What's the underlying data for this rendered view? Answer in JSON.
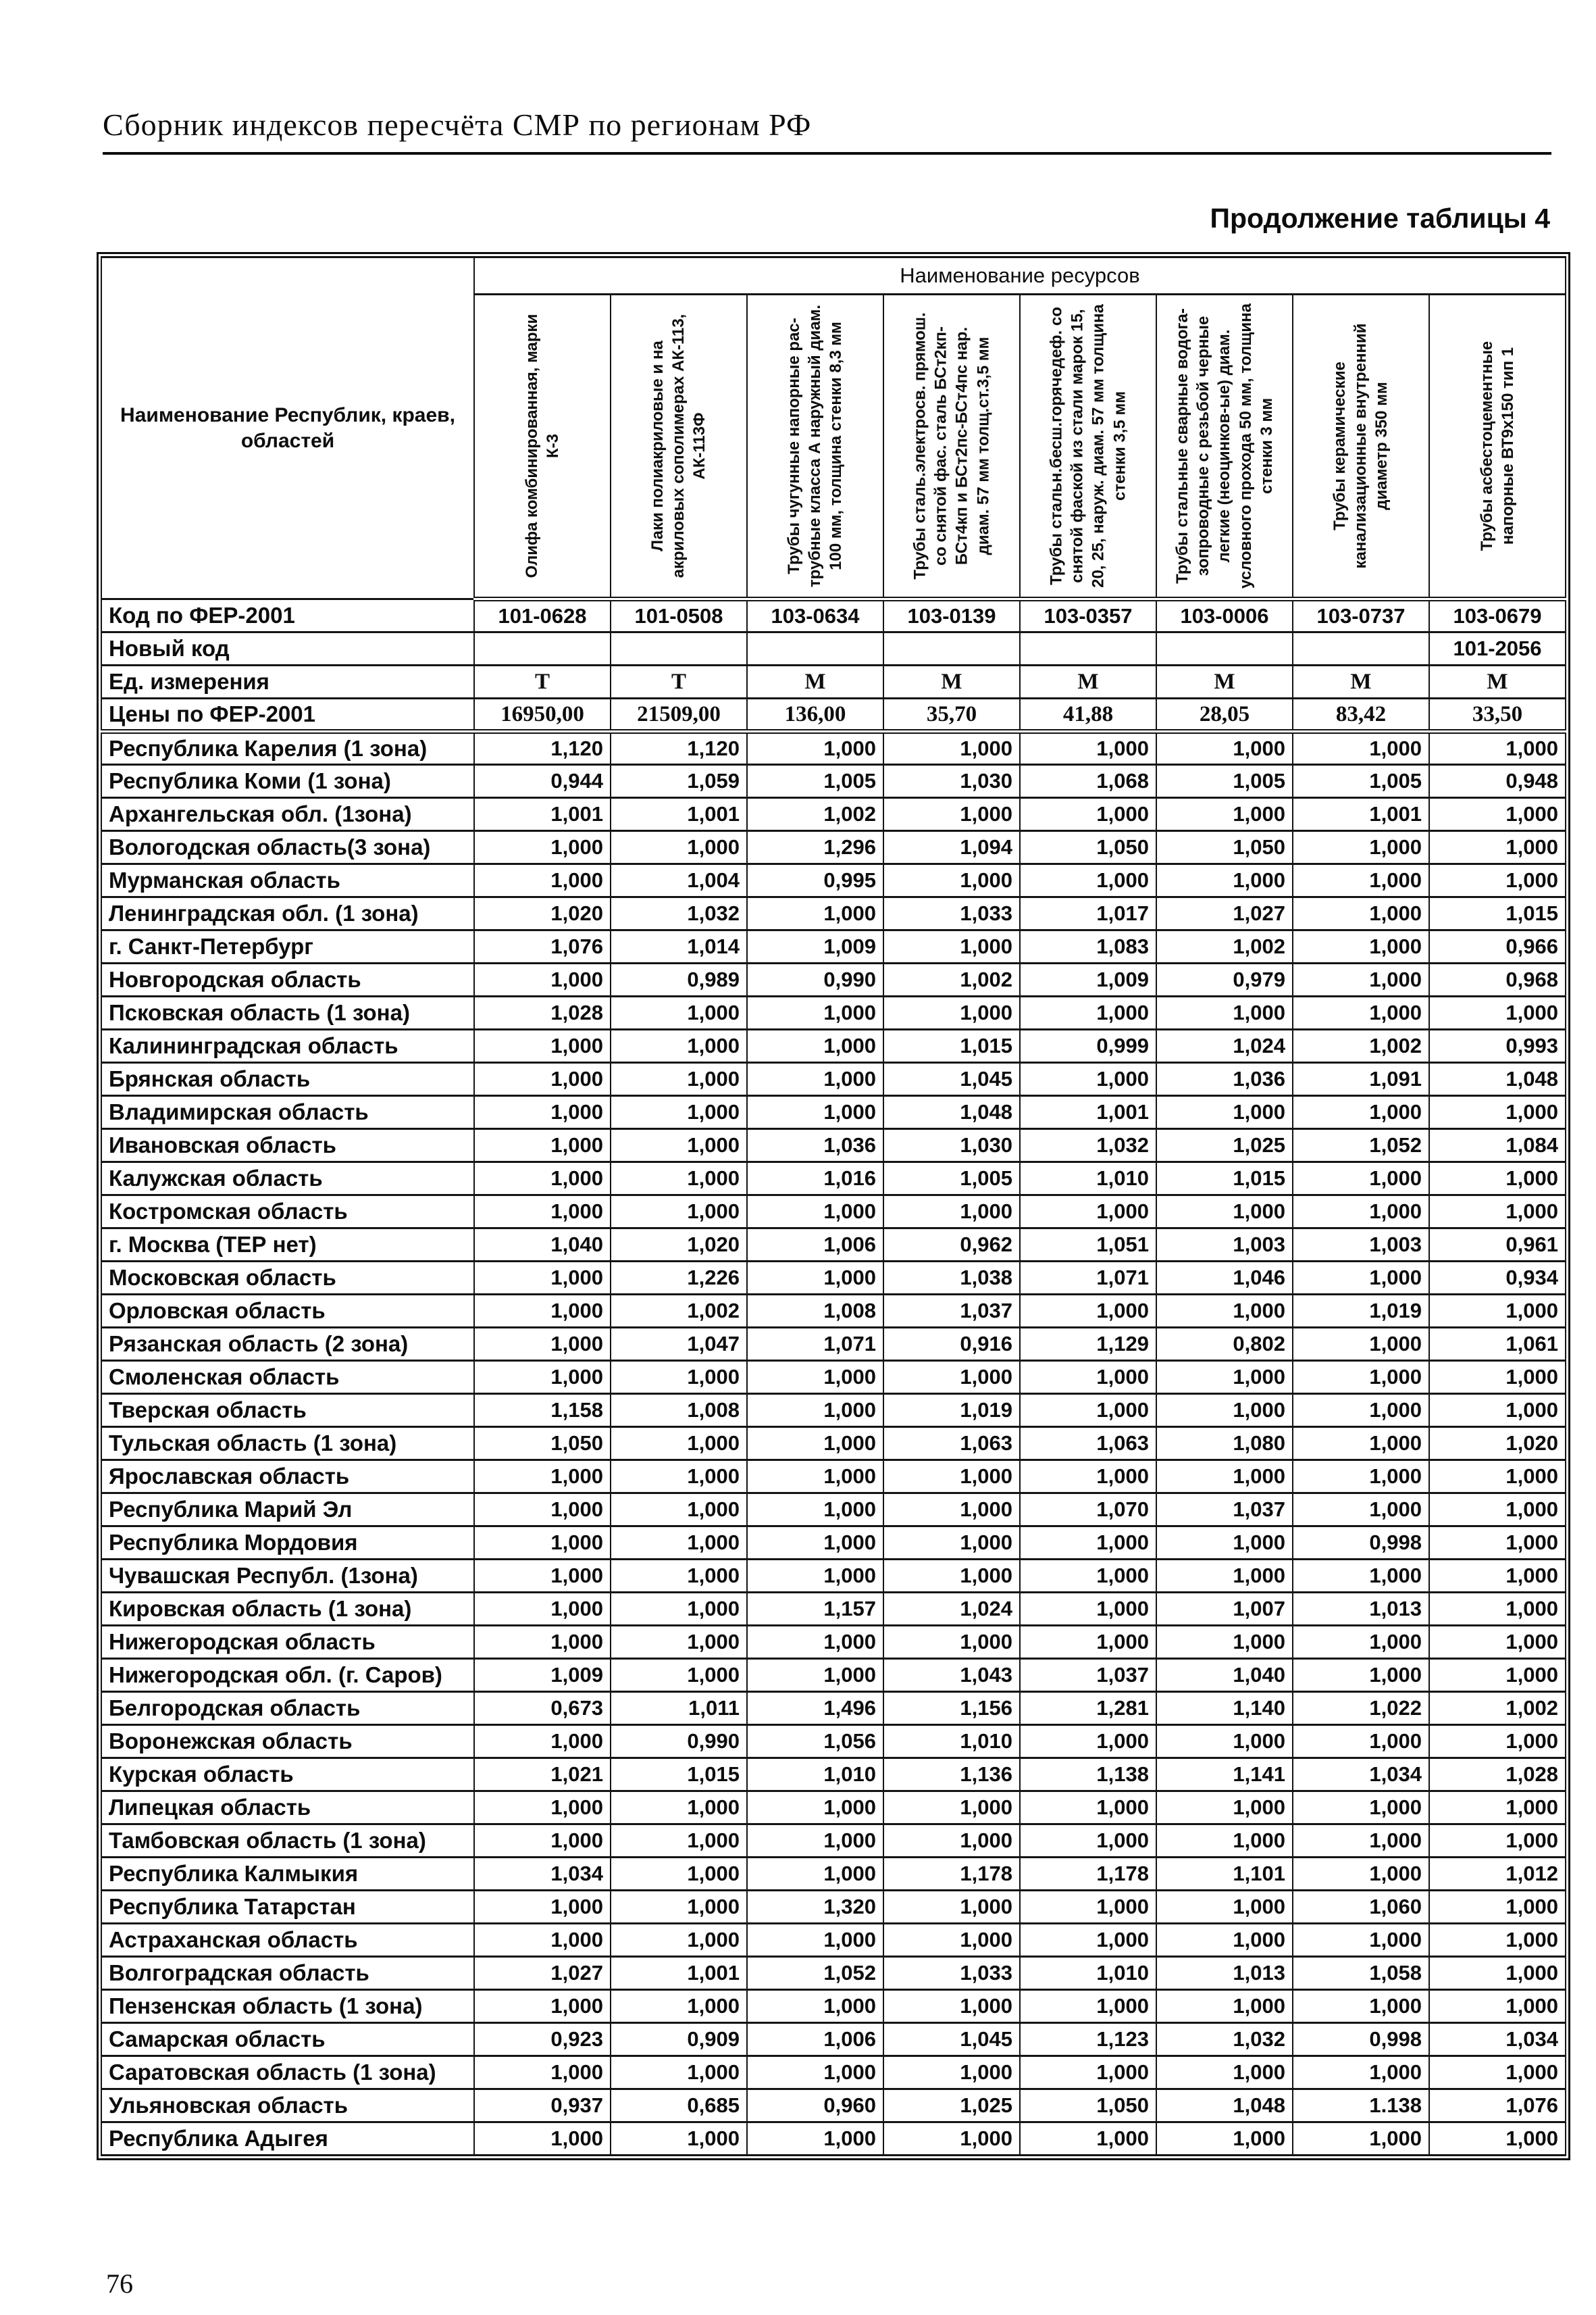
{
  "page": {
    "header_title": "Сборник индексов пересчёта СМР  по регионам РФ",
    "table_caption": "Продолжение таблицы 4",
    "page_number": "76"
  },
  "table": {
    "region_header": "Наименование Республик, краев, областей",
    "resources_header": "Наименование ресурсов",
    "columns": [
      "Олифа комбинированная, марки К-3",
      "Лаки полиакриловые и на акриловых сополимерах АК-113, АК-113Ф",
      "Трубы чугунные напорные рас- трубные класса А наружный диам. 100 мм, толщина стенки 8,3 мм",
      "Трубы сталь.электросв. прямош. со снятой фас. сталь БСт2кп- БСт4кп и БСт2пс-БСт4пс нар. диам. 57 мм  толщ.ст.3,5 мм",
      "Трубы стальн.бесш.горячедеф. со снятой фаской  из стали марок 15, 20, 25, наруж. диам. 57 мм толщина стенки 3,5 мм",
      "Трубы стальные сварные водога- зопроводные с резьбой черные легкие (неоцинков-ые) диам. условного прохода 50 мм, толщина стенки 3 мм",
      "Трубы керамические канализационные внутренний диаметр  350 мм",
      "Трубы асбестоцементные напорные ВТ9х150 тип 1"
    ],
    "meta_rows": [
      {
        "label": "Код по ФЕР-2001",
        "style": "sans",
        "values": [
          "101-0628",
          "101-0508",
          "103-0634",
          "103-0139",
          "103-0357",
          "103-0006",
          "103-0737",
          "103-0679"
        ]
      },
      {
        "label": "Новый код",
        "style": "sans",
        "values": [
          "",
          "",
          "",
          "",
          "",
          "",
          "",
          "101-2056"
        ]
      },
      {
        "label": "Ед. измерения",
        "style": "serif",
        "values": [
          "Т",
          "Т",
          "М",
          "М",
          "М",
          "М",
          "М",
          "М"
        ]
      },
      {
        "label": "Цены по ФЕР-2001",
        "style": "serif",
        "values": [
          "16950,00",
          "21509,00",
          "136,00",
          "35,70",
          "41,88",
          "28,05",
          "83,42",
          "33,50"
        ]
      }
    ],
    "rows": [
      {
        "region": "Республика Карелия (1 зона)",
        "values": [
          "1,120",
          "1,120",
          "1,000",
          "1,000",
          "1,000",
          "1,000",
          "1,000",
          "1,000"
        ]
      },
      {
        "region": "Республика Коми (1 зона)",
        "values": [
          "0,944",
          "1,059",
          "1,005",
          "1,030",
          "1,068",
          "1,005",
          "1,005",
          "0,948"
        ]
      },
      {
        "region": "Архангельская обл. (1зона)",
        "values": [
          "1,001",
          "1,001",
          "1,002",
          "1,000",
          "1,000",
          "1,000",
          "1,001",
          "1,000"
        ]
      },
      {
        "region": "Вологодская область(3 зона)",
        "values": [
          "1,000",
          "1,000",
          "1,296",
          "1,094",
          "1,050",
          "1,050",
          "1,000",
          "1,000"
        ]
      },
      {
        "region": "Мурманская область",
        "values": [
          "1,000",
          "1,004",
          "0,995",
          "1,000",
          "1,000",
          "1,000",
          "1,000",
          "1,000"
        ]
      },
      {
        "region": "Ленинградская обл. (1 зона)",
        "values": [
          "1,020",
          "1,032",
          "1,000",
          "1,033",
          "1,017",
          "1,027",
          "1,000",
          "1,015"
        ]
      },
      {
        "region": "г. Санкт-Петербург",
        "values": [
          "1,076",
          "1,014",
          "1,009",
          "1,000",
          "1,083",
          "1,002",
          "1,000",
          "0,966"
        ]
      },
      {
        "region": "Новгородская область",
        "values": [
          "1,000",
          "0,989",
          "0,990",
          "1,002",
          "1,009",
          "0,979",
          "1,000",
          "0,968"
        ]
      },
      {
        "region": "Псковская область (1 зона)",
        "values": [
          "1,028",
          "1,000",
          "1,000",
          "1,000",
          "1,000",
          "1,000",
          "1,000",
          "1,000"
        ]
      },
      {
        "region": "Калининградская область",
        "values": [
          "1,000",
          "1,000",
          "1,000",
          "1,015",
          "0,999",
          "1,024",
          "1,002",
          "0,993"
        ]
      },
      {
        "region": "Брянская область",
        "values": [
          "1,000",
          "1,000",
          "1,000",
          "1,045",
          "1,000",
          "1,036",
          "1,091",
          "1,048"
        ]
      },
      {
        "region": "Владимирская область",
        "values": [
          "1,000",
          "1,000",
          "1,000",
          "1,048",
          "1,001",
          "1,000",
          "1,000",
          "1,000"
        ]
      },
      {
        "region": "Ивановская область",
        "values": [
          "1,000",
          "1,000",
          "1,036",
          "1,030",
          "1,032",
          "1,025",
          "1,052",
          "1,084"
        ]
      },
      {
        "region": "Калужская область",
        "values": [
          "1,000",
          "1,000",
          "1,016",
          "1,005",
          "1,010",
          "1,015",
          "1,000",
          "1,000"
        ]
      },
      {
        "region": "Костромская область",
        "values": [
          "1,000",
          "1,000",
          "1,000",
          "1,000",
          "1,000",
          "1,000",
          "1,000",
          "1,000"
        ]
      },
      {
        "region": "г. Москва (ТЕР нет)",
        "values": [
          "1,040",
          "1,020",
          "1,006",
          "0,962",
          "1,051",
          "1,003",
          "1,003",
          "0,961"
        ]
      },
      {
        "region": "Московская  область",
        "values": [
          "1,000",
          "1,226",
          "1,000",
          "1,038",
          "1,071",
          "1,046",
          "1,000",
          "0,934"
        ]
      },
      {
        "region": "Орловская область",
        "values": [
          "1,000",
          "1,002",
          "1,008",
          "1,037",
          "1,000",
          "1,000",
          "1,019",
          "1,000"
        ]
      },
      {
        "region": "Рязанская область (2 зона)",
        "values": [
          "1,000",
          "1,047",
          "1,071",
          "0,916",
          "1,129",
          "0,802",
          "1,000",
          "1,061"
        ]
      },
      {
        "region": "Смоленская область",
        "values": [
          "1,000",
          "1,000",
          "1,000",
          "1,000",
          "1,000",
          "1,000",
          "1,000",
          "1,000"
        ]
      },
      {
        "region": "Тверская область",
        "values": [
          "1,158",
          "1,008",
          "1,000",
          "1,019",
          "1,000",
          "1,000",
          "1,000",
          "1,000"
        ]
      },
      {
        "region": "Тульская область (1 зона)",
        "values": [
          "1,050",
          "1,000",
          "1,000",
          "1,063",
          "1,063",
          "1,080",
          "1,000",
          "1,020"
        ]
      },
      {
        "region": "Ярославская область",
        "values": [
          "1,000",
          "1,000",
          "1,000",
          "1,000",
          "1,000",
          "1,000",
          "1,000",
          "1,000"
        ]
      },
      {
        "region": "Республика Марий Эл",
        "values": [
          "1,000",
          "1,000",
          "1,000",
          "1,000",
          "1,070",
          "1,037",
          "1,000",
          "1,000"
        ]
      },
      {
        "region": "Республика Мордовия",
        "values": [
          "1,000",
          "1,000",
          "1,000",
          "1,000",
          "1,000",
          "1,000",
          "0,998",
          "1,000"
        ]
      },
      {
        "region": "Чувашская Республ. (1зона)",
        "values": [
          "1,000",
          "1,000",
          "1,000",
          "1,000",
          "1,000",
          "1,000",
          "1,000",
          "1,000"
        ]
      },
      {
        "region": "Кировская область (1 зона)",
        "values": [
          "1,000",
          "1,000",
          "1,157",
          "1,024",
          "1,000",
          "1,007",
          "1,013",
          "1,000"
        ]
      },
      {
        "region": "Нижегородская область",
        "values": [
          "1,000",
          "1,000",
          "1,000",
          "1,000",
          "1,000",
          "1,000",
          "1,000",
          "1,000"
        ]
      },
      {
        "region": "Нижегородская обл. (г. Саров)",
        "values": [
          "1,009",
          "1,000",
          "1,000",
          "1,043",
          "1,037",
          "1,040",
          "1,000",
          "1,000"
        ]
      },
      {
        "region": "Белгородская область",
        "values": [
          "0,673",
          "1,011",
          "1,496",
          "1,156",
          "1,281",
          "1,140",
          "1,022",
          "1,002"
        ]
      },
      {
        "region": "Воронежская область",
        "values": [
          "1,000",
          "0,990",
          "1,056",
          "1,010",
          "1,000",
          "1,000",
          "1,000",
          "1,000"
        ]
      },
      {
        "region": "Курская область",
        "values": [
          "1,021",
          "1,015",
          "1,010",
          "1,136",
          "1,138",
          "1,141",
          "1,034",
          "1,028"
        ]
      },
      {
        "region": "Липецкая область",
        "values": [
          "1,000",
          "1,000",
          "1,000",
          "1,000",
          "1,000",
          "1,000",
          "1,000",
          "1,000"
        ]
      },
      {
        "region": "Тамбовская область (1 зона)",
        "values": [
          "1,000",
          "1,000",
          "1,000",
          "1,000",
          "1,000",
          "1,000",
          "1,000",
          "1,000"
        ]
      },
      {
        "region": "Республика Калмыкия",
        "values": [
          "1,034",
          "1,000",
          "1,000",
          "1,178",
          "1,178",
          "1,101",
          "1,000",
          "1,012"
        ]
      },
      {
        "region": "Республика Татарстан",
        "values": [
          "1,000",
          "1,000",
          "1,320",
          "1,000",
          "1,000",
          "1,000",
          "1,060",
          "1,000"
        ]
      },
      {
        "region": "Астраханская область",
        "values": [
          "1,000",
          "1,000",
          "1,000",
          "1,000",
          "1,000",
          "1,000",
          "1,000",
          "1,000"
        ]
      },
      {
        "region": "Волгоградская область",
        "values": [
          "1,027",
          "1,001",
          "1,052",
          "1,033",
          "1,010",
          "1,013",
          "1,058",
          "1,000"
        ]
      },
      {
        "region": "Пензенская область (1 зона)",
        "values": [
          "1,000",
          "1,000",
          "1,000",
          "1,000",
          "1,000",
          "1,000",
          "1,000",
          "1,000"
        ]
      },
      {
        "region": "Самарская область",
        "values": [
          "0,923",
          "0,909",
          "1,006",
          "1,045",
          "1,123",
          "1,032",
          "0,998",
          "1,034"
        ]
      },
      {
        "region": "Саратовская область (1 зона)",
        "values": [
          "1,000",
          "1,000",
          "1,000",
          "1,000",
          "1,000",
          "1,000",
          "1,000",
          "1,000"
        ]
      },
      {
        "region": "Ульяновская область",
        "values": [
          "0,937",
          "0,685",
          "0,960",
          "1,025",
          "1,050",
          "1,048",
          "1.138",
          "1,076"
        ]
      },
      {
        "region": "Республика Адыгея",
        "values": [
          "1,000",
          "1,000",
          "1,000",
          "1,000",
          "1,000",
          "1,000",
          "1,000",
          "1,000"
        ]
      }
    ]
  }
}
